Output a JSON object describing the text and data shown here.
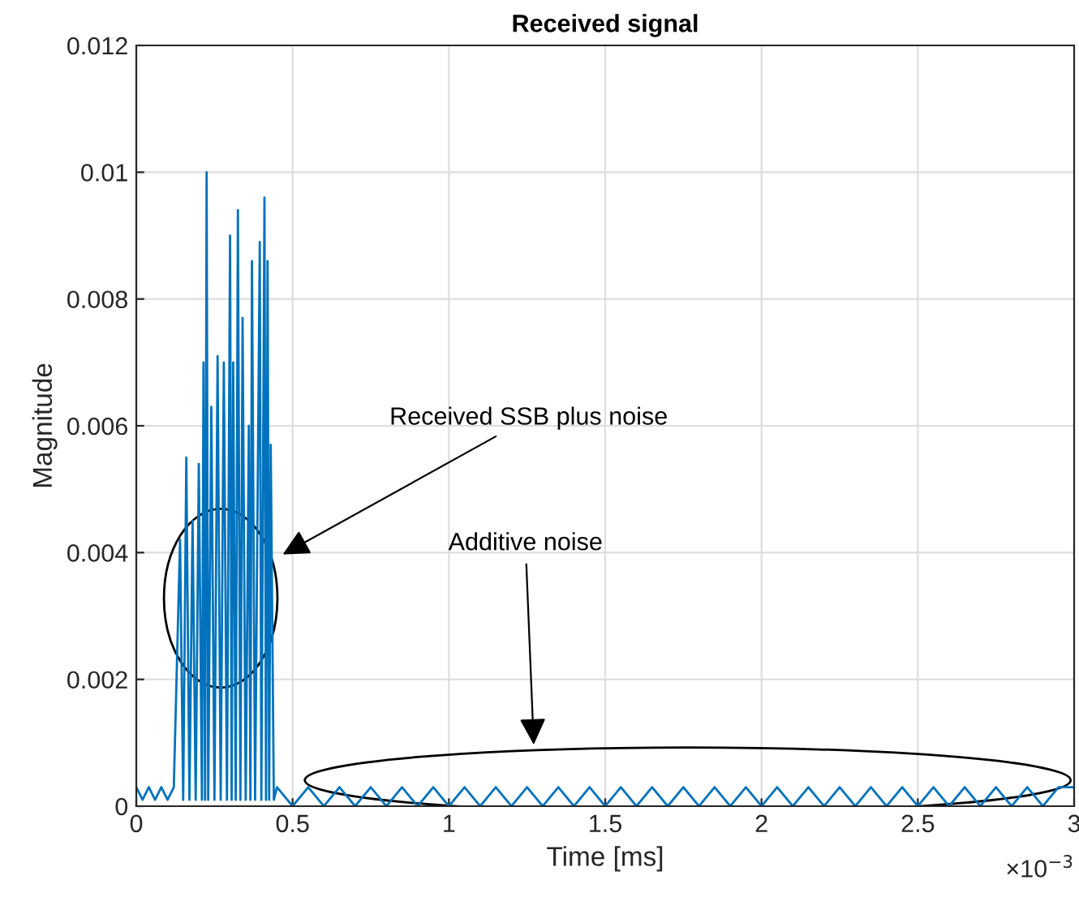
{
  "chart_data": {
    "type": "line",
    "title": "Received signal",
    "xlabel": "Time [ms]",
    "ylabel": "Magnitude",
    "x": [
      0,
      0.02,
      0.04,
      0.06,
      0.08,
      0.1,
      0.12,
      0.14,
      0.15,
      0.16,
      0.17,
      0.18,
      0.19,
      0.2,
      0.21,
      0.215,
      0.22,
      0.225,
      0.23,
      0.24,
      0.25,
      0.26,
      0.27,
      0.28,
      0.29,
      0.3,
      0.305,
      0.31,
      0.318,
      0.325,
      0.333,
      0.34,
      0.35,
      0.36,
      0.365,
      0.37,
      0.38,
      0.395,
      0.4,
      0.41,
      0.415,
      0.42,
      0.425,
      0.43,
      0.44,
      0.45,
      0.5,
      0.55,
      0.6,
      0.65,
      0.7,
      0.75,
      0.8,
      0.85,
      0.9,
      0.95,
      1,
      1.05,
      1.1,
      1.15,
      1.2,
      1.25,
      1.3,
      1.35,
      1.4,
      1.45,
      1.5,
      1.55,
      1.6,
      1.65,
      1.7,
      1.75,
      1.8,
      1.85,
      1.9,
      1.95,
      2,
      2.05,
      2.1,
      2.15,
      2.2,
      2.25,
      2.3,
      2.35,
      2.4,
      2.45,
      2.5,
      2.55,
      2.6,
      2.65,
      2.7,
      2.75,
      2.8,
      2.85,
      2.9,
      2.95,
      3
    ],
    "series": [
      {
        "color": "#0072bd",
        "values": [
          0.0003,
          0.0001,
          0.0003,
          0.0001,
          0.0003,
          0.0001,
          0.0003,
          0.0042,
          0.0001,
          0.0055,
          0.0001,
          0.0045,
          0.0001,
          0.0054,
          0.0001,
          0.007,
          0.0001,
          0.01,
          0.0001,
          0.0063,
          0.0001,
          0.0071,
          0.0001,
          0.007,
          0.0001,
          0.009,
          0.0001,
          0.007,
          0.0001,
          0.0094,
          0.0001,
          0.0077,
          0.0001,
          0.006,
          0.0001,
          0.0086,
          0.0001,
          0.0089,
          0.0001,
          0.0096,
          0.0001,
          0.0086,
          0.0001,
          0.0057,
          0.0001,
          0.0003,
          0,
          0.0003,
          0,
          0.0003,
          0,
          0.0003,
          0,
          0.0003,
          0,
          0.0003,
          0,
          0.0003,
          0,
          0.0003,
          0,
          0.0003,
          0,
          0.0003,
          0,
          0.0003,
          0,
          0.0003,
          0,
          0.0003,
          0,
          0.0003,
          0,
          0.0003,
          0,
          0.0003,
          0,
          0.0003,
          0,
          0.0003,
          0,
          0.0003,
          0,
          0.0003,
          0,
          0.0003,
          0,
          0.0003,
          0,
          0.0003,
          0,
          0.0003,
          0,
          0.0003,
          0,
          0.0003,
          0.0003
        ]
      }
    ],
    "xlim": [
      0,
      3
    ],
    "ylim": [
      0,
      0.012
    ],
    "xticks": [
      0,
      0.5,
      1,
      1.5,
      2,
      2.5,
      3
    ],
    "yticks": [
      0,
      0.002,
      0.004,
      0.006,
      0.008,
      0.01,
      0.012
    ],
    "grid": true,
    "line_style": "solid",
    "annotations": [
      "Received SSB plus noise",
      "Additive noise",
      "×10$^{−3}$"
    ]
  }
}
